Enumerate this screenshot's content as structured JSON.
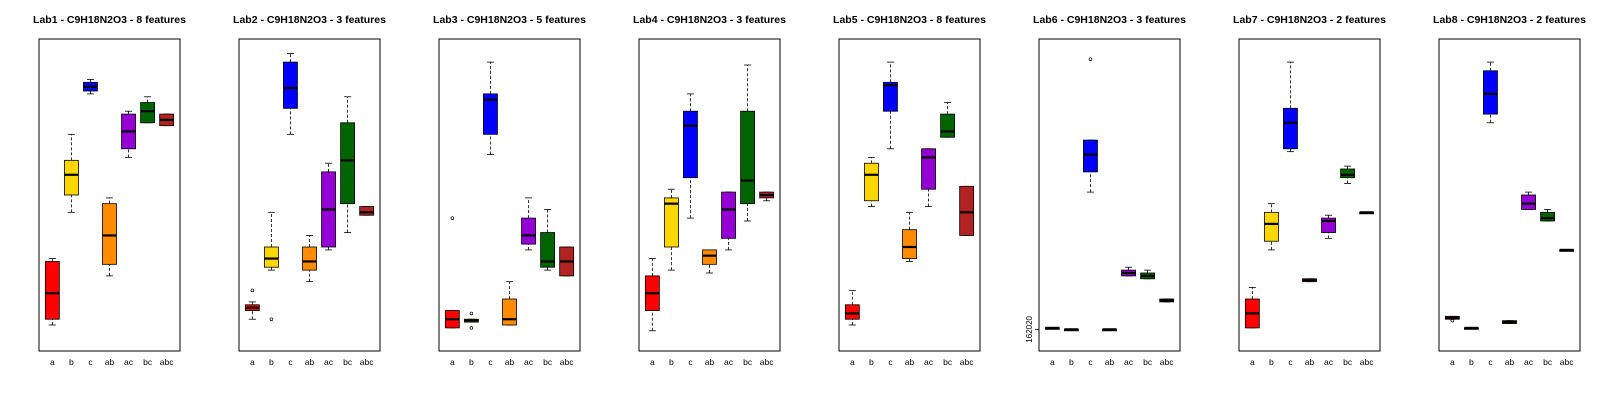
{
  "chart_data": [
    {
      "type": "boxplot",
      "title": "Lab1 - C9H18N2O3 - 8 features",
      "categories": [
        "a",
        "b",
        "c",
        "ab",
        "ac",
        "bc",
        "abc"
      ],
      "box_colors": [
        "#ff0000",
        "#ffd700",
        "#0000ff",
        "#ff8c00",
        "#9400d3",
        "#006400",
        "#b22222"
      ],
      "boxes": [
        {
          "min": 0.05,
          "q1": 0.07,
          "median": 0.16,
          "q3": 0.27,
          "max": 0.28,
          "outliers": []
        },
        {
          "min": 0.44,
          "q1": 0.5,
          "median": 0.57,
          "q3": 0.62,
          "max": 0.71,
          "outliers": []
        },
        {
          "min": 0.85,
          "q1": 0.86,
          "median": 0.875,
          "q3": 0.89,
          "max": 0.9,
          "outliers": []
        },
        {
          "min": 0.22,
          "q1": 0.26,
          "median": 0.36,
          "q3": 0.47,
          "max": 0.49,
          "outliers": []
        },
        {
          "min": 0.63,
          "q1": 0.66,
          "median": 0.72,
          "q3": 0.78,
          "max": 0.79,
          "outliers": []
        },
        {
          "min": 0.75,
          "q1": 0.75,
          "median": 0.79,
          "q3": 0.82,
          "max": 0.84,
          "outliers": []
        },
        {
          "min": 0.74,
          "q1": 0.74,
          "median": 0.76,
          "q3": 0.78,
          "max": 0.78,
          "outliers": []
        }
      ],
      "ylim": [
        0,
        1
      ]
    },
    {
      "type": "boxplot",
      "title": "Lab2 - C9H18N2O3 - 3 features",
      "categories": [
        "a",
        "b",
        "c",
        "ab",
        "ac",
        "bc",
        "abc"
      ],
      "box_colors": [
        "#ff0000",
        "#ffd700",
        "#0000ff",
        "#ff8c00",
        "#9400d3",
        "#006400",
        "#b22222"
      ],
      "boxes": [
        {
          "min": 0.07,
          "q1": 0.1,
          "median": 0.11,
          "q3": 0.12,
          "max": 0.13,
          "outliers": [
            0.17
          ]
        },
        {
          "min": 0.24,
          "q1": 0.25,
          "median": 0.28,
          "q3": 0.32,
          "max": 0.44,
          "outliers": [
            0.07
          ]
        },
        {
          "min": 0.71,
          "q1": 0.8,
          "median": 0.87,
          "q3": 0.96,
          "max": 0.99,
          "outliers": []
        },
        {
          "min": 0.2,
          "q1": 0.24,
          "median": 0.27,
          "q3": 0.32,
          "max": 0.36,
          "outliers": []
        },
        {
          "min": 0.31,
          "q1": 0.32,
          "median": 0.45,
          "q3": 0.58,
          "max": 0.61,
          "outliers": []
        },
        {
          "min": 0.37,
          "q1": 0.47,
          "median": 0.62,
          "q3": 0.75,
          "max": 0.84,
          "outliers": []
        },
        {
          "min": 0.43,
          "q1": 0.43,
          "median": 0.44,
          "q3": 0.46,
          "max": 0.46,
          "outliers": []
        }
      ],
      "ylim": [
        0,
        1
      ]
    },
    {
      "type": "boxplot",
      "title": "Lab3 - C9H18N2O3 - 5 features",
      "categories": [
        "a",
        "b",
        "c",
        "ab",
        "ac",
        "bc",
        "abc"
      ],
      "box_colors": [
        "#ff0000",
        "#ffd700",
        "#0000ff",
        "#ff8c00",
        "#9400d3",
        "#006400",
        "#b22222"
      ],
      "boxes": [
        {
          "min": 0.04,
          "q1": 0.04,
          "median": 0.07,
          "q3": 0.1,
          "max": 0.1,
          "outliers": [
            0.42
          ]
        },
        {
          "min": 0.06,
          "q1": 0.06,
          "median": 0.065,
          "q3": 0.07,
          "max": 0.07,
          "outliers": [
            0.09,
            0.04
          ]
        },
        {
          "min": 0.64,
          "q1": 0.71,
          "median": 0.83,
          "q3": 0.85,
          "max": 0.96,
          "outliers": []
        },
        {
          "min": 0.05,
          "q1": 0.05,
          "median": 0.07,
          "q3": 0.14,
          "max": 0.2,
          "outliers": []
        },
        {
          "min": 0.31,
          "q1": 0.33,
          "median": 0.36,
          "q3": 0.42,
          "max": 0.49,
          "outliers": []
        },
        {
          "min": 0.24,
          "q1": 0.25,
          "median": 0.27,
          "q3": 0.37,
          "max": 0.45,
          "outliers": []
        },
        {
          "min": 0.22,
          "q1": 0.22,
          "median": 0.27,
          "q3": 0.32,
          "max": 0.32,
          "outliers": []
        }
      ],
      "ylim": [
        0,
        1
      ]
    },
    {
      "type": "boxplot",
      "title": "Lab4 - C9H18N2O3 - 3 features",
      "categories": [
        "a",
        "b",
        "c",
        "ab",
        "ac",
        "bc",
        "abc"
      ],
      "box_colors": [
        "#ff0000",
        "#ffd700",
        "#0000ff",
        "#ff8c00",
        "#9400d3",
        "#006400",
        "#b22222"
      ],
      "boxes": [
        {
          "min": 0.03,
          "q1": 0.1,
          "median": 0.16,
          "q3": 0.22,
          "max": 0.28,
          "outliers": []
        },
        {
          "min": 0.24,
          "q1": 0.32,
          "median": 0.47,
          "q3": 0.49,
          "max": 0.52,
          "outliers": []
        },
        {
          "min": 0.42,
          "q1": 0.56,
          "median": 0.74,
          "q3": 0.79,
          "max": 0.85,
          "outliers": []
        },
        {
          "min": 0.23,
          "q1": 0.26,
          "median": 0.29,
          "q3": 0.31,
          "max": 0.31,
          "outliers": []
        },
        {
          "min": 0.31,
          "q1": 0.35,
          "median": 0.45,
          "q3": 0.51,
          "max": 0.51,
          "outliers": []
        },
        {
          "min": 0.41,
          "q1": 0.47,
          "median": 0.55,
          "q3": 0.79,
          "max": 0.95,
          "outliers": []
        },
        {
          "min": 0.48,
          "q1": 0.49,
          "median": 0.5,
          "q3": 0.51,
          "max": 0.51,
          "outliers": []
        }
      ],
      "ylim": [
        0,
        1
      ]
    },
    {
      "type": "boxplot",
      "title": "Lab5 - C9H18N2O3 - 8 features",
      "categories": [
        "a",
        "b",
        "c",
        "ab",
        "ac",
        "bc",
        "abc"
      ],
      "box_colors": [
        "#ff0000",
        "#ffd700",
        "#0000ff",
        "#ff8c00",
        "#9400d3",
        "#006400",
        "#b22222"
      ],
      "boxes": [
        {
          "min": 0.05,
          "q1": 0.07,
          "median": 0.09,
          "q3": 0.12,
          "max": 0.17,
          "outliers": []
        },
        {
          "min": 0.46,
          "q1": 0.48,
          "median": 0.57,
          "q3": 0.61,
          "max": 0.63,
          "outliers": []
        },
        {
          "min": 0.66,
          "q1": 0.79,
          "median": 0.88,
          "q3": 0.89,
          "max": 0.96,
          "outliers": []
        },
        {
          "min": 0.27,
          "q1": 0.28,
          "median": 0.32,
          "q3": 0.38,
          "max": 0.44,
          "outliers": []
        },
        {
          "min": 0.46,
          "q1": 0.52,
          "median": 0.63,
          "q3": 0.66,
          "max": 0.66,
          "outliers": []
        },
        {
          "min": 0.7,
          "q1": 0.7,
          "median": 0.72,
          "q3": 0.78,
          "max": 0.82,
          "outliers": []
        },
        {
          "min": 0.36,
          "q1": 0.36,
          "median": 0.44,
          "q3": 0.53,
          "max": 0.53,
          "outliers": []
        }
      ],
      "ylim": [
        0,
        1
      ]
    },
    {
      "type": "boxplot",
      "title": "Lab6 - C9H18N2O3 - 3 features",
      "categories": [
        "a",
        "b",
        "c",
        "ab",
        "ac",
        "bc",
        "abc"
      ],
      "box_colors": [
        "#ff0000",
        "#ffd700",
        "#0000ff",
        "#ff8c00",
        "#9400d3",
        "#006400",
        "#b22222"
      ],
      "y_tick_label": "162020",
      "boxes": [
        {
          "min": 0.04,
          "q1": 0.04,
          "median": 0.04,
          "q3": 0.04,
          "max": 0.04,
          "outliers": []
        },
        {
          "min": 0.035,
          "q1": 0.035,
          "median": 0.035,
          "q3": 0.035,
          "max": 0.035,
          "outliers": []
        },
        {
          "min": 0.51,
          "q1": 0.58,
          "median": 0.64,
          "q3": 0.69,
          "max": 0.69,
          "outliers": [
            0.97
          ]
        },
        {
          "min": 0.035,
          "q1": 0.035,
          "median": 0.035,
          "q3": 0.035,
          "max": 0.035,
          "outliers": []
        },
        {
          "min": 0.22,
          "q1": 0.22,
          "median": 0.23,
          "q3": 0.24,
          "max": 0.25,
          "outliers": []
        },
        {
          "min": 0.21,
          "q1": 0.21,
          "median": 0.22,
          "q3": 0.23,
          "max": 0.24,
          "outliers": []
        },
        {
          "min": 0.13,
          "q1": 0.13,
          "median": 0.135,
          "q3": 0.14,
          "max": 0.14,
          "outliers": []
        }
      ],
      "ylim": [
        0,
        1
      ]
    },
    {
      "type": "boxplot",
      "title": "Lab7 - C9H18N2O3 - 2 features",
      "categories": [
        "a",
        "b",
        "c",
        "ab",
        "ac",
        "bc",
        "abc"
      ],
      "box_colors": [
        "#ff0000",
        "#ffd700",
        "#0000ff",
        "#ff8c00",
        "#9400d3",
        "#006400",
        "#b22222"
      ],
      "boxes": [
        {
          "min": 0.04,
          "q1": 0.04,
          "median": 0.09,
          "q3": 0.14,
          "max": 0.18,
          "outliers": []
        },
        {
          "min": 0.31,
          "q1": 0.34,
          "median": 0.4,
          "q3": 0.44,
          "max": 0.47,
          "outliers": []
        },
        {
          "min": 0.65,
          "q1": 0.66,
          "median": 0.75,
          "q3": 0.8,
          "max": 0.96,
          "outliers": []
        },
        {
          "min": 0.2,
          "q1": 0.2,
          "median": 0.205,
          "q3": 0.21,
          "max": 0.21,
          "outliers": []
        },
        {
          "min": 0.35,
          "q1": 0.37,
          "median": 0.41,
          "q3": 0.42,
          "max": 0.43,
          "outliers": []
        },
        {
          "min": 0.54,
          "q1": 0.56,
          "median": 0.57,
          "q3": 0.59,
          "max": 0.6,
          "outliers": []
        },
        {
          "min": 0.44,
          "q1": 0.44,
          "median": 0.44,
          "q3": 0.44,
          "max": 0.44,
          "outliers": []
        }
      ],
      "ylim": [
        0,
        1
      ]
    },
    {
      "type": "boxplot",
      "title": "Lab8 - C9H18N2O3 - 2 features",
      "categories": [
        "a",
        "b",
        "c",
        "ab",
        "ac",
        "bc",
        "abc"
      ],
      "box_colors": [
        "#ff0000",
        "#ffd700",
        "#0000ff",
        "#ff8c00",
        "#9400d3",
        "#006400",
        "#b22222"
      ],
      "boxes": [
        {
          "min": 0.07,
          "q1": 0.07,
          "median": 0.075,
          "q3": 0.08,
          "max": 0.08,
          "outliers": [
            0.065
          ]
        },
        {
          "min": 0.04,
          "q1": 0.04,
          "median": 0.04,
          "q3": 0.04,
          "max": 0.04,
          "outliers": []
        },
        {
          "min": 0.75,
          "q1": 0.78,
          "median": 0.85,
          "q3": 0.93,
          "max": 0.96,
          "outliers": []
        },
        {
          "min": 0.055,
          "q1": 0.055,
          "median": 0.06,
          "q3": 0.065,
          "max": 0.065,
          "outliers": []
        },
        {
          "min": 0.45,
          "q1": 0.45,
          "median": 0.47,
          "q3": 0.5,
          "max": 0.51,
          "outliers": []
        },
        {
          "min": 0.41,
          "q1": 0.41,
          "median": 0.42,
          "q3": 0.44,
          "max": 0.45,
          "outliers": []
        },
        {
          "min": 0.31,
          "q1": 0.31,
          "median": 0.31,
          "q3": 0.31,
          "max": 0.31,
          "outliers": []
        }
      ],
      "ylim": [
        0,
        1
      ]
    }
  ]
}
